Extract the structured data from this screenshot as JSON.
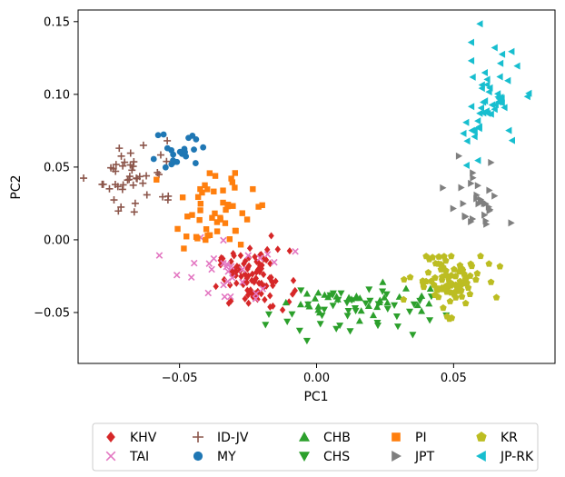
{
  "chart_data": {
    "type": "scatter",
    "title": "",
    "xlabel": "PC1",
    "ylabel": "PC2",
    "xlim": [
      -0.087,
      0.087
    ],
    "ylim": [
      -0.085,
      0.158
    ],
    "xticks": [
      -0.05,
      0.0,
      0.05
    ],
    "xtick_labels": [
      "−0.05",
      "0.00",
      "0.05"
    ],
    "yticks": [
      -0.05,
      0.0,
      0.05,
      0.1,
      0.15
    ],
    "ytick_labels": [
      "−0.05",
      "0.00",
      "0.05",
      "0.10",
      "0.15"
    ],
    "legend_position": "bottom",
    "series": [
      {
        "name": "KHV",
        "marker": "diamond",
        "color": "#d62728",
        "cx": -0.023,
        "cy": -0.027,
        "sx": 0.0065,
        "sy": 0.01,
        "count": 95
      },
      {
        "name": "TAI",
        "marker": "x",
        "color": "#e377c2",
        "cx": -0.033,
        "cy": -0.022,
        "sx": 0.0095,
        "sy": 0.012,
        "count": 30
      },
      {
        "name": "ID-JV",
        "marker": "plus",
        "color": "#8c564b",
        "cx": -0.065,
        "cy": 0.044,
        "sx": 0.0075,
        "sy": 0.012,
        "count": 45
      },
      {
        "name": "MY",
        "marker": "circle",
        "color": "#1f77b4",
        "cx": -0.05,
        "cy": 0.063,
        "sx": 0.0055,
        "sy": 0.008,
        "count": 22
      },
      {
        "name": "CHB",
        "marker": "triangle-up",
        "color": "#2ca02c",
        "cx": 0.015,
        "cy": -0.042,
        "sx": 0.013,
        "sy": 0.007,
        "count": 36
      },
      {
        "name": "CHS",
        "marker": "triangle-down",
        "color": "#2ca02c",
        "cx": 0.012,
        "cy": -0.048,
        "sx": 0.015,
        "sy": 0.009,
        "count": 45
      },
      {
        "name": "PI",
        "marker": "square",
        "color": "#ff7f0e",
        "cx": -0.038,
        "cy": 0.02,
        "sx": 0.0075,
        "sy": 0.013,
        "count": 50
      },
      {
        "name": "JPT",
        "marker": "triangle-right",
        "color": "#7f7f7f",
        "cx": 0.058,
        "cy": 0.025,
        "sx": 0.005,
        "sy": 0.012,
        "count": 30
      },
      {
        "name": "KR",
        "marker": "pentagon",
        "color": "#bcbd22",
        "cx": 0.048,
        "cy": -0.028,
        "sx": 0.0065,
        "sy": 0.01,
        "count": 90
      },
      {
        "name": "JP-RK",
        "marker": "triangle-left",
        "color": "#17becf",
        "cx": 0.062,
        "cy": 0.095,
        "sx": 0.006,
        "sy": 0.018,
        "count": 55
      }
    ]
  }
}
